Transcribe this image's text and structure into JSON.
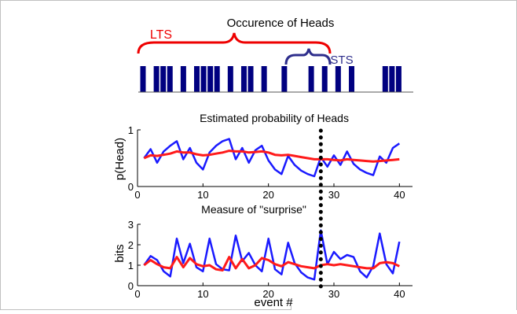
{
  "colors": {
    "blue": "#1a1aff",
    "red": "#ff1a1a",
    "navy": "#000080",
    "bracket_red": "#ee0000",
    "bracket_navy": "#2e2e8c",
    "frame": "#c0c0c0"
  },
  "chart_data": [
    {
      "type": "bar",
      "title": "Occurence of Heads",
      "annotations": [
        "LTS",
        "STS"
      ],
      "xlim": [
        1,
        40
      ],
      "heads_events": [
        1,
        3,
        4,
        5,
        7,
        9,
        10,
        11,
        12,
        14,
        16,
        17,
        19,
        22,
        26,
        28,
        30,
        32,
        37,
        38,
        39
      ]
    },
    {
      "type": "line",
      "title": "Estimated probability of Heads",
      "xlabel": "",
      "ylabel": "p(Head)",
      "xlim": [
        0,
        42
      ],
      "ylim": [
        0,
        1
      ],
      "xticks": [
        "0",
        "10",
        "20",
        "30",
        "40"
      ],
      "yticks": [
        "0",
        "1"
      ],
      "x": [
        1,
        2,
        3,
        4,
        5,
        6,
        7,
        8,
        9,
        10,
        11,
        12,
        13,
        14,
        15,
        16,
        17,
        18,
        19,
        20,
        21,
        22,
        23,
        24,
        25,
        26,
        27,
        28,
        29,
        30,
        31,
        32,
        33,
        34,
        35,
        36,
        37,
        38,
        39,
        40
      ],
      "series": [
        {
          "color": "blue",
          "values": [
            0.5,
            0.66,
            0.42,
            0.62,
            0.72,
            0.8,
            0.48,
            0.68,
            0.42,
            0.3,
            0.6,
            0.72,
            0.8,
            0.84,
            0.48,
            0.68,
            0.42,
            0.64,
            0.72,
            0.46,
            0.3,
            0.22,
            0.54,
            0.38,
            0.28,
            0.22,
            0.18,
            0.52,
            0.35,
            0.55,
            0.38,
            0.62,
            0.4,
            0.3,
            0.24,
            0.2,
            0.53,
            0.42,
            0.68,
            0.76
          ]
        },
        {
          "color": "red",
          "values": [
            0.5,
            0.55,
            0.54,
            0.56,
            0.58,
            0.62,
            0.6,
            0.6,
            0.57,
            0.55,
            0.56,
            0.58,
            0.6,
            0.63,
            0.62,
            0.62,
            0.6,
            0.61,
            0.62,
            0.6,
            0.56,
            0.55,
            0.56,
            0.54,
            0.52,
            0.5,
            0.48,
            0.48,
            0.48,
            0.47,
            0.46,
            0.48,
            0.47,
            0.46,
            0.45,
            0.44,
            0.45,
            0.46,
            0.47,
            0.48
          ]
        }
      ],
      "marker_x": 28
    },
    {
      "type": "line",
      "title": "Measure of \"surprise\"",
      "xlabel": "event #",
      "ylabel": "bits",
      "xlim": [
        0,
        42
      ],
      "ylim": [
        0,
        3
      ],
      "xticks": [
        "0",
        "10",
        "20",
        "30",
        "40"
      ],
      "yticks": [
        "0",
        "1",
        "2",
        "3"
      ],
      "x": [
        1,
        2,
        3,
        4,
        5,
        6,
        7,
        8,
        9,
        10,
        11,
        12,
        13,
        14,
        15,
        16,
        17,
        18,
        19,
        20,
        21,
        22,
        23,
        24,
        25,
        26,
        27,
        28,
        29,
        30,
        31,
        32,
        33,
        34,
        35,
        36,
        37,
        38,
        39,
        40
      ],
      "series": [
        {
          "color": "blue",
          "values": [
            1.0,
            1.45,
            1.25,
            0.7,
            0.45,
            2.3,
            1.1,
            2.05,
            0.9,
            0.7,
            2.3,
            1.05,
            0.8,
            0.75,
            2.45,
            1.2,
            1.6,
            1.0,
            0.7,
            2.3,
            0.8,
            0.55,
            2.1,
            1.1,
            0.65,
            0.4,
            0.3,
            2.7,
            1.05,
            1.65,
            1.3,
            1.5,
            1.4,
            0.7,
            0.4,
            0.95,
            2.55,
            1.05,
            0.6,
            2.15
          ]
        },
        {
          "color": "red",
          "values": [
            1.0,
            1.25,
            1.05,
            0.9,
            0.85,
            1.4,
            0.9,
            1.35,
            1.05,
            0.95,
            1.0,
            0.8,
            0.75,
            1.4,
            0.85,
            1.3,
            0.85,
            1.0,
            1.35,
            1.25,
            1.05,
            0.95,
            1.15,
            1.05,
            0.95,
            0.9,
            0.85,
            1.0,
            1.05,
            1.0,
            1.05,
            1.0,
            0.95,
            0.9,
            0.85,
            0.85,
            1.1,
            1.15,
            1.1,
            0.95
          ]
        }
      ],
      "marker_x": 28
    }
  ]
}
